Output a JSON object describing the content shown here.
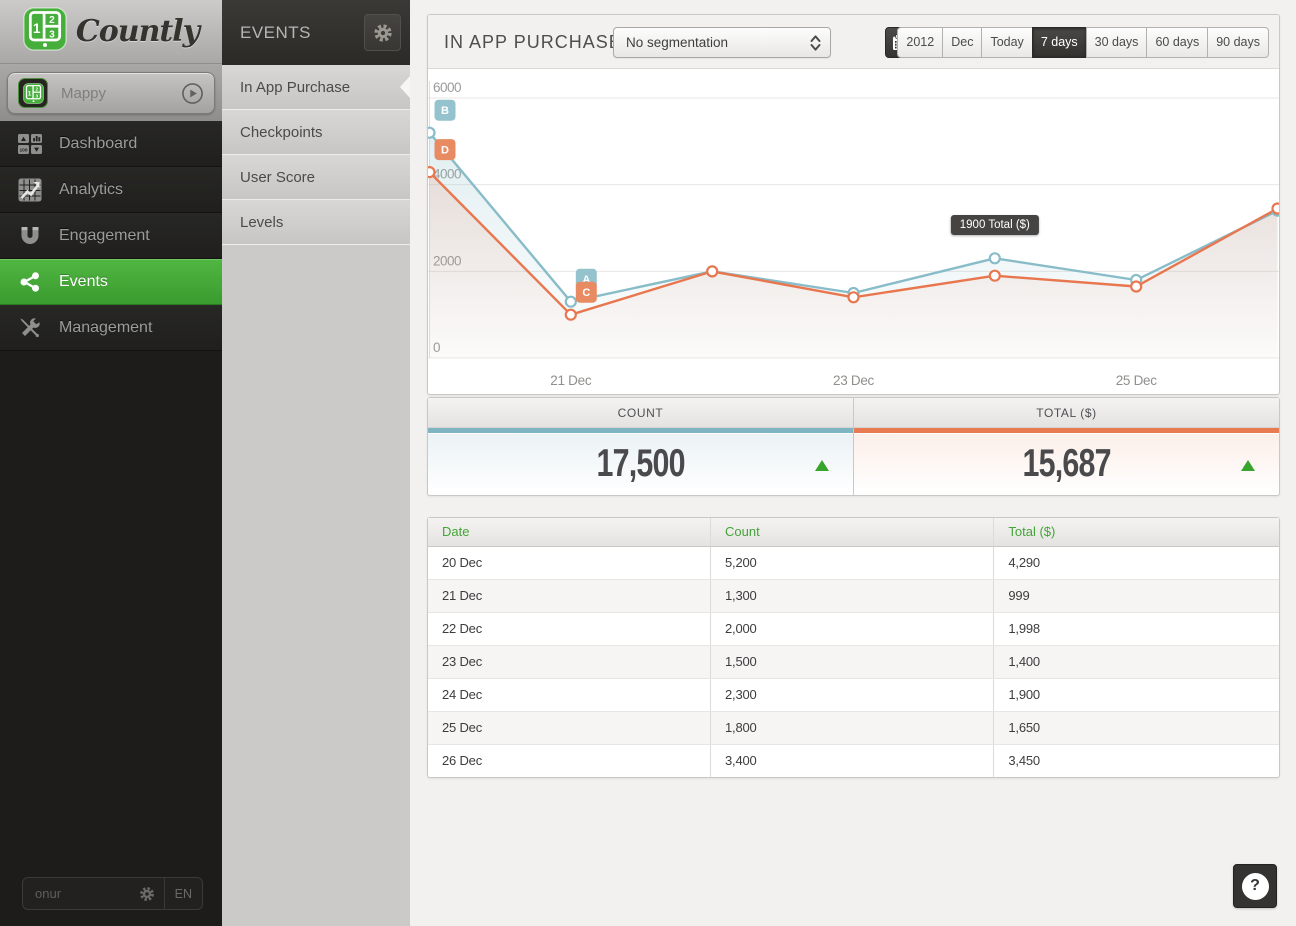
{
  "brand": {
    "name": "Countly",
    "logo_digits": [
      "1",
      "2",
      "3"
    ]
  },
  "app_selector": {
    "name": "Mappy"
  },
  "sidebar": {
    "items": [
      {
        "label": "Dashboard",
        "icon": "dashboard-icon",
        "selected": false
      },
      {
        "label": "Analytics",
        "icon": "analytics-icon",
        "selected": false
      },
      {
        "label": "Engagement",
        "icon": "engagement-icon",
        "selected": false
      },
      {
        "label": "Events",
        "icon": "events-icon",
        "selected": true
      },
      {
        "label": "Management",
        "icon": "management-icon",
        "selected": false
      }
    ]
  },
  "user_bar": {
    "username": "onur",
    "language": "EN"
  },
  "events_panel": {
    "title": "EVENTS",
    "items": [
      {
        "label": "In App Purchase",
        "selected": true
      },
      {
        "label": "Checkpoints",
        "selected": false
      },
      {
        "label": "User Score",
        "selected": false
      },
      {
        "label": "Levels",
        "selected": false
      }
    ]
  },
  "header": {
    "title": "IN APP PURCHASE",
    "segmentation": "No segmentation",
    "date_buttons": [
      "2012",
      "Dec",
      "Today",
      "7 days",
      "30 days",
      "60 days",
      "90 days"
    ],
    "selected_range": "7 days"
  },
  "chart_data": {
    "type": "line",
    "x": [
      "20 Dec",
      "21 Dec",
      "22 Dec",
      "23 Dec",
      "24 Dec",
      "25 Dec",
      "26 Dec"
    ],
    "series": [
      {
        "name": "Count",
        "color": "#88bcc8",
        "values": [
          5200,
          1300,
          2000,
          1500,
          2300,
          1800,
          3400
        ]
      },
      {
        "name": "Total ($)",
        "color": "#e8764f",
        "values": [
          4290,
          999,
          1998,
          1400,
          1900,
          1650,
          3450
        ]
      }
    ],
    "ylim": [
      0,
      6000
    ],
    "yticks": [
      0,
      2000,
      4000,
      6000
    ],
    "xtick_labels": [
      "21 Dec",
      "23 Dec",
      "25 Dec"
    ],
    "grid": true,
    "legend": "none",
    "tooltip": {
      "text": "1900 Total ($)",
      "x_index": 4
    },
    "annotations": [
      {
        "label": "B",
        "series": 0,
        "x_index": 0
      },
      {
        "label": "D",
        "series": 1,
        "x_index": 0
      },
      {
        "label": "A",
        "series": 0,
        "x_index": 1
      },
      {
        "label": "C",
        "series": 1,
        "x_index": 1
      }
    ]
  },
  "summary": {
    "cells": [
      {
        "label": "COUNT",
        "value": "17,500",
        "trend": "up",
        "color": "#7fb4c2"
      },
      {
        "label": "TOTAL ($)",
        "value": "15,687",
        "trend": "up",
        "color": "#e8764f"
      }
    ]
  },
  "table": {
    "columns": [
      "Date",
      "Count",
      "Total ($)"
    ],
    "rows": [
      [
        "20 Dec",
        "5,200",
        "4,290"
      ],
      [
        "21 Dec",
        "1,300",
        "999"
      ],
      [
        "22 Dec",
        "2,000",
        "1,998"
      ],
      [
        "23 Dec",
        "1,500",
        "1,400"
      ],
      [
        "24 Dec",
        "2,300",
        "1,900"
      ],
      [
        "25 Dec",
        "1,800",
        "1,650"
      ],
      [
        "26 Dec",
        "3,400",
        "3,450"
      ]
    ]
  },
  "help": {
    "label": "?"
  },
  "colors": {
    "accent_green": "#43ab36",
    "count_blue": "#88bcc8",
    "total_orange": "#e8764f",
    "trend_green": "#37a42c"
  }
}
